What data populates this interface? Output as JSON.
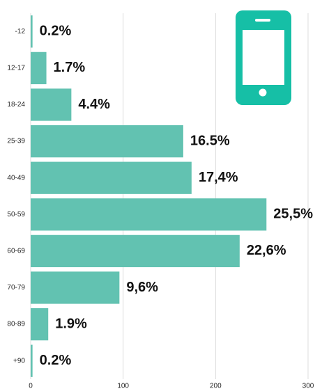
{
  "chart_data": {
    "type": "bar",
    "orientation": "horizontal",
    "categories": [
      "-12",
      "12-17",
      "18-24",
      "25-39",
      "40-49",
      "50-59",
      "60-69",
      "70-79",
      "80-89",
      "+90"
    ],
    "values": [
      2,
      17,
      44,
      165,
      174,
      255,
      226,
      96,
      19,
      2
    ],
    "value_labels": [
      "0.2%",
      "1.7%",
      "4.4%",
      "16.5%",
      "17,4%",
      "25,5%",
      "22,6%",
      "9,6%",
      "1.9%",
      "0.2%"
    ],
    "color": "#62c2b1",
    "xlim": [
      0,
      300
    ],
    "xticks": [
      0,
      100,
      200,
      300
    ],
    "grid": true
  }
}
